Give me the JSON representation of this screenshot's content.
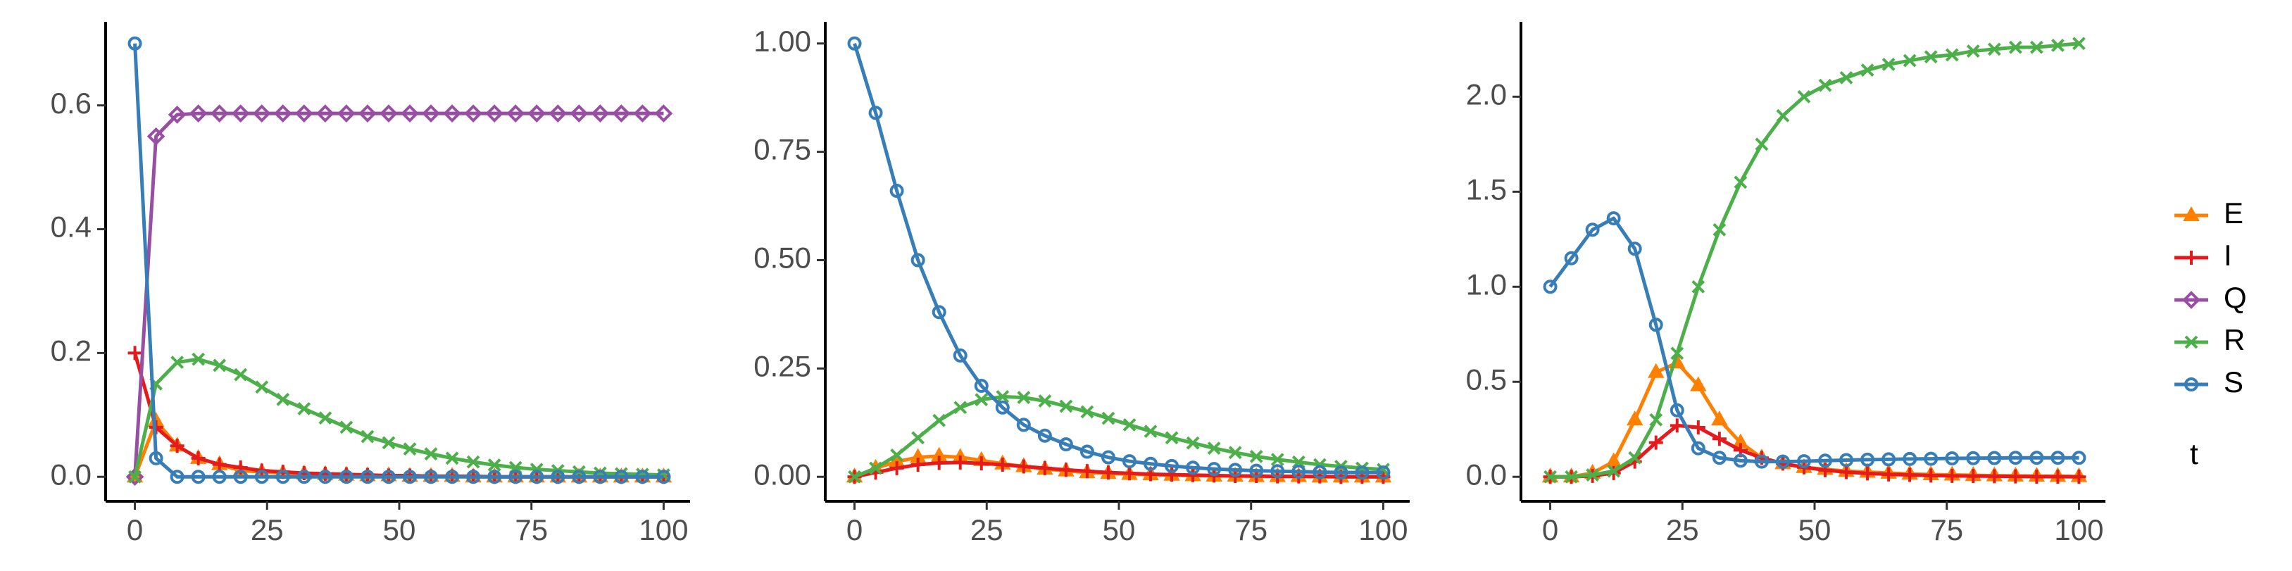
{
  "chart_data": [
    {
      "type": "line",
      "legend_title": "t",
      "x": [
        0,
        4,
        8,
        12,
        16,
        20,
        24,
        28,
        32,
        36,
        40,
        44,
        48,
        52,
        56,
        60,
        64,
        68,
        72,
        76,
        80,
        84,
        88,
        92,
        96,
        100
      ],
      "xlim": [
        -5,
        105
      ],
      "xticks": [
        0,
        25,
        50,
        75,
        100
      ],
      "ylim": [
        -0.035,
        0.735
      ],
      "yticks": [
        {
          "value": 0,
          "label": "0.0"
        },
        {
          "value": 0.2,
          "label": "0.2"
        },
        {
          "value": 0.4,
          "label": "0.4"
        },
        {
          "value": 0.6,
          "label": "0.6"
        }
      ],
      "series": [
        {
          "name": "E",
          "color": "#ff7f00",
          "marker": "triangle",
          "values": [
            0,
            0.09,
            0.05,
            0.03,
            0.02,
            0.01,
            0.008,
            0.006,
            0.005,
            0.004,
            0.003,
            0.002,
            0.002,
            0.001,
            0.001,
            0.001,
            0,
            0,
            0,
            0,
            0,
            0,
            0,
            0,
            0,
            0
          ]
        },
        {
          "name": "I",
          "color": "#e41a1c",
          "marker": "plus",
          "values": [
            0.2,
            0.08,
            0.05,
            0.03,
            0.02,
            0.015,
            0.01,
            0.008,
            0.006,
            0.005,
            0.004,
            0.003,
            0.002,
            0.002,
            0.001,
            0.001,
            0.001,
            0,
            0,
            0,
            0,
            0,
            0,
            0,
            0,
            0
          ]
        },
        {
          "name": "Q",
          "color": "#984ea3",
          "marker": "diamond",
          "values": [
            0,
            0.55,
            0.585,
            0.587,
            0.587,
            0.587,
            0.587,
            0.587,
            0.587,
            0.587,
            0.587,
            0.587,
            0.587,
            0.587,
            0.587,
            0.587,
            0.587,
            0.587,
            0.587,
            0.587,
            0.587,
            0.587,
            0.587,
            0.587,
            0.587,
            0.587
          ]
        },
        {
          "name": "R",
          "color": "#4daf4a",
          "marker": "cross",
          "values": [
            0,
            0.15,
            0.185,
            0.19,
            0.18,
            0.165,
            0.145,
            0.125,
            0.11,
            0.095,
            0.08,
            0.065,
            0.055,
            0.045,
            0.037,
            0.03,
            0.024,
            0.019,
            0.015,
            0.012,
            0.01,
            0.008,
            0.006,
            0.005,
            0.004,
            0.003
          ]
        },
        {
          "name": "S",
          "color": "#377eb8",
          "marker": "circle",
          "values": [
            0.7,
            0.03,
            0,
            0,
            0,
            0,
            0,
            0,
            0,
            0,
            0,
            0,
            0,
            0,
            0,
            0,
            0,
            0,
            0,
            0,
            0,
            0,
            0,
            0,
            0,
            0
          ]
        }
      ]
    },
    {
      "type": "line",
      "x": [
        0,
        4,
        8,
        12,
        16,
        20,
        24,
        28,
        32,
        36,
        40,
        44,
        48,
        52,
        56,
        60,
        64,
        68,
        72,
        76,
        80,
        84,
        88,
        92,
        96,
        100
      ],
      "xlim": [
        -5,
        105
      ],
      "xticks": [
        0,
        25,
        50,
        75,
        100
      ],
      "ylim": [
        -0.05,
        1.05
      ],
      "yticks": [
        {
          "value": 0,
          "label": "0.00"
        },
        {
          "value": 0.25,
          "label": "0.25"
        },
        {
          "value": 0.5,
          "label": "0.50"
        },
        {
          "value": 0.75,
          "label": "0.75"
        },
        {
          "value": 1,
          "label": "1.00"
        }
      ],
      "series": [
        {
          "name": "E",
          "color": "#ff7f00",
          "marker": "triangle",
          "values": [
            0,
            0.02,
            0.035,
            0.045,
            0.048,
            0.045,
            0.038,
            0.03,
            0.024,
            0.018,
            0.014,
            0.01,
            0.008,
            0.006,
            0.005,
            0.004,
            0.003,
            0.002,
            0.002,
            0.001,
            0.001,
            0.001,
            0,
            0,
            0,
            0
          ]
        },
        {
          "name": "I",
          "color": "#e41a1c",
          "marker": "plus",
          "values": [
            0,
            0.01,
            0.02,
            0.028,
            0.032,
            0.033,
            0.031,
            0.028,
            0.024,
            0.02,
            0.016,
            0.013,
            0.01,
            0.008,
            0.006,
            0.005,
            0.004,
            0.003,
            0.002,
            0.002,
            0.001,
            0.001,
            0.001,
            0,
            0,
            0
          ]
        },
        {
          "name": "R",
          "color": "#4daf4a",
          "marker": "cross",
          "values": [
            0,
            0.02,
            0.05,
            0.09,
            0.13,
            0.16,
            0.178,
            0.185,
            0.183,
            0.175,
            0.163,
            0.15,
            0.135,
            0.12,
            0.105,
            0.09,
            0.078,
            0.066,
            0.056,
            0.047,
            0.04,
            0.034,
            0.028,
            0.024,
            0.02,
            0.017
          ]
        },
        {
          "name": "S",
          "color": "#377eb8",
          "marker": "circle",
          "values": [
            1,
            0.84,
            0.66,
            0.5,
            0.38,
            0.28,
            0.21,
            0.16,
            0.12,
            0.095,
            0.075,
            0.058,
            0.045,
            0.036,
            0.03,
            0.025,
            0.021,
            0.018,
            0.016,
            0.014,
            0.013,
            0.012,
            0.011,
            0.01,
            0.01,
            0.01
          ]
        }
      ]
    },
    {
      "type": "line",
      "x": [
        0,
        4,
        8,
        12,
        16,
        20,
        24,
        28,
        32,
        36,
        40,
        44,
        48,
        52,
        56,
        60,
        64,
        68,
        72,
        76,
        80,
        84,
        88,
        92,
        96,
        100
      ],
      "xlim": [
        -5,
        105
      ],
      "xticks": [
        0,
        25,
        50,
        75,
        100
      ],
      "ylim": [
        -0.114,
        2.394
      ],
      "yticks": [
        {
          "value": 0,
          "label": "0.0"
        },
        {
          "value": 0.5,
          "label": "0.5"
        },
        {
          "value": 1,
          "label": "1.0"
        },
        {
          "value": 1.5,
          "label": "1.5"
        },
        {
          "value": 2,
          "label": "2.0"
        }
      ],
      "series": [
        {
          "name": "E",
          "color": "#ff7f00",
          "marker": "triangle",
          "values": [
            0,
            0,
            0.02,
            0.08,
            0.3,
            0.55,
            0.6,
            0.48,
            0.3,
            0.18,
            0.1,
            0.07,
            0.05,
            0.04,
            0.03,
            0.025,
            0.02,
            0.015,
            0.012,
            0.01,
            0.008,
            0.006,
            0.005,
            0.004,
            0.003,
            0.002
          ]
        },
        {
          "name": "I",
          "color": "#e41a1c",
          "marker": "plus",
          "values": [
            0,
            0,
            0.005,
            0.02,
            0.08,
            0.18,
            0.27,
            0.26,
            0.2,
            0.14,
            0.1,
            0.07,
            0.05,
            0.035,
            0.025,
            0.018,
            0.013,
            0.01,
            0.007,
            0.005,
            0.004,
            0.003,
            0.002,
            0.001,
            0.001,
            0
          ]
        },
        {
          "name": "R",
          "color": "#4daf4a",
          "marker": "cross",
          "values": [
            0,
            0,
            0.01,
            0.03,
            0.1,
            0.3,
            0.65,
            1,
            1.3,
            1.55,
            1.75,
            1.9,
            2,
            2.06,
            2.1,
            2.14,
            2.17,
            2.19,
            2.21,
            2.22,
            2.24,
            2.25,
            2.26,
            2.26,
            2.27,
            2.28
          ]
        },
        {
          "name": "S",
          "color": "#377eb8",
          "marker": "circle",
          "values": [
            1,
            1.15,
            1.3,
            1.36,
            1.2,
            0.8,
            0.35,
            0.15,
            0.1,
            0.085,
            0.08,
            0.08,
            0.082,
            0.085,
            0.088,
            0.09,
            0.092,
            0.094,
            0.095,
            0.097,
            0.098,
            0.099,
            0.1,
            0.1,
            0.1,
            0.1
          ]
        }
      ]
    }
  ]
}
